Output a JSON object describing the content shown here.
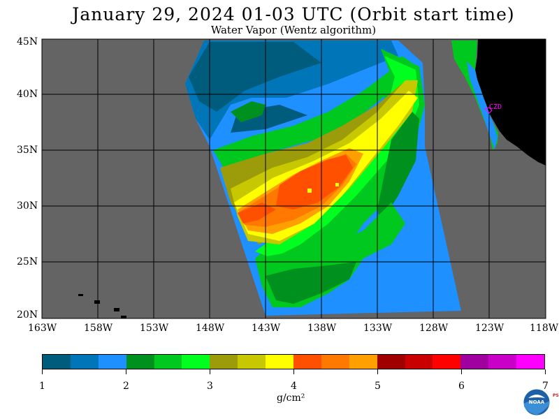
{
  "header": {
    "title": "January 29, 2024  01-03 UTC  (Orbit start time)",
    "subtitle": "Water Vapor (Wentz algorithm)"
  },
  "map": {
    "lat_labels": [
      "45N",
      "40N",
      "35N",
      "30N",
      "25N",
      "20N"
    ],
    "lon_labels": [
      "163W",
      "158W",
      "153W",
      "148W",
      "143W",
      "138W",
      "133W",
      "128W",
      "123W",
      "118W"
    ],
    "station_label": "CZD",
    "colors": {
      "background_gray": "#646464",
      "land": "#000000",
      "station": "#ff00ff"
    }
  },
  "colorbar": {
    "colors": [
      "#005c7c",
      "#0076b8",
      "#1e90ff",
      "#00901e",
      "#00c81e",
      "#00ff1e",
      "#9c9c0a",
      "#c8c800",
      "#ffff00",
      "#ff5000",
      "#ff7800",
      "#ffa000",
      "#a00000",
      "#c80000",
      "#ff0000",
      "#a000a0",
      "#c800c8",
      "#ff00ff"
    ],
    "tick_labels": [
      "1",
      "2",
      "3",
      "4",
      "5",
      "6",
      "7"
    ],
    "units": "g/cm²"
  },
  "logo": {
    "name": "NOAA",
    "side_text": "PSL"
  }
}
